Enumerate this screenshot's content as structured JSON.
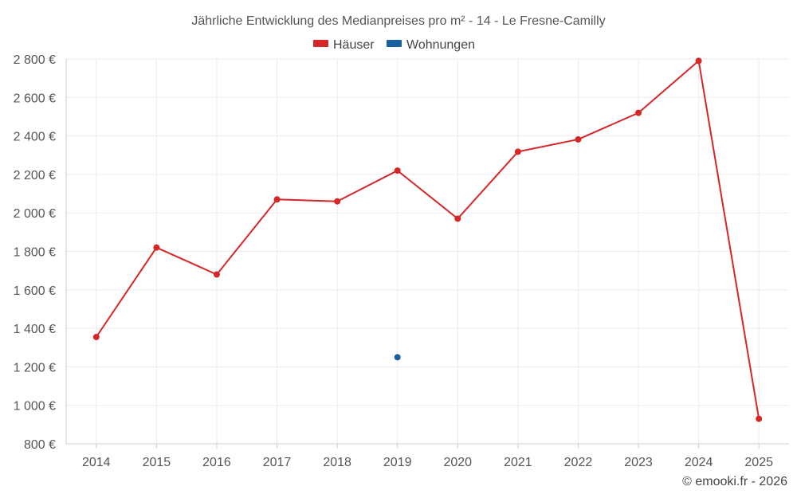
{
  "chart_data": {
    "type": "line",
    "title": "Jährliche Entwicklung des Medianpreises pro m² - 14 - Le Fresne-Camilly",
    "categories": [
      "2014",
      "2015",
      "2016",
      "2017",
      "2018",
      "2019",
      "2020",
      "2021",
      "2022",
      "2023",
      "2024",
      "2025"
    ],
    "series": [
      {
        "name": "Häuser",
        "color": "#d62728",
        "values": [
          1355,
          1820,
          1680,
          2070,
          2060,
          2220,
          1970,
          2318,
          2382,
          2520,
          2790,
          930
        ]
      },
      {
        "name": "Wohnungen",
        "color": "#1a5f9e",
        "values": [
          null,
          null,
          null,
          null,
          null,
          1250,
          null,
          null,
          null,
          null,
          null,
          null
        ]
      }
    ],
    "ylim": [
      800,
      2800
    ],
    "yticks": [
      800,
      1000,
      1200,
      1400,
      1600,
      1800,
      2000,
      2200,
      2400,
      2600,
      2800
    ],
    "ytick_labels": [
      "800 €",
      "1 000 €",
      "1 200 €",
      "1 400 €",
      "1 600 €",
      "1 800 €",
      "2 000 €",
      "2 200 €",
      "2 400 €",
      "2 600 €",
      "2 800 €"
    ],
    "xlabel": "",
    "ylabel": "",
    "grid": true,
    "legend_position": "top-center"
  },
  "credit": "© emooki.fr - 2026"
}
